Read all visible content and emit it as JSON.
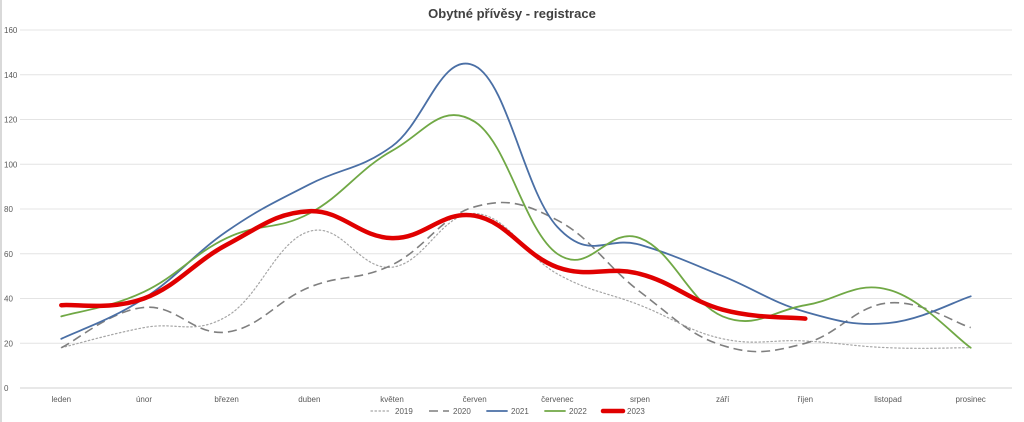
{
  "chart_data": {
    "type": "line",
    "title": "Obytné přívěsy - registrace",
    "xlabel": "",
    "ylabel": "",
    "categories": [
      "leden",
      "únor",
      "březen",
      "duben",
      "květen",
      "červen",
      "červenec",
      "srpen",
      "září",
      "říjen",
      "listopad",
      "prosinec"
    ],
    "ylim": [
      0,
      160
    ],
    "yticks": [
      "0",
      "20",
      "40",
      "60",
      "80",
      "100",
      "120",
      "140",
      "160"
    ],
    "grid": true,
    "legend": "bottom",
    "series": [
      {
        "name": "2019",
        "color": "#a6a6a6",
        "style": "dotted",
        "values": [
          18,
          27,
          32,
          70,
          54,
          78,
          51,
          37,
          22,
          21,
          18,
          18
        ]
      },
      {
        "name": "2020",
        "color": "#7f7f7f",
        "style": "dashed",
        "values": [
          18,
          36,
          25,
          45,
          55,
          81,
          75,
          43,
          19,
          20,
          38,
          27
        ]
      },
      {
        "name": "2021",
        "color": "#4a6fa5",
        "style": "solid",
        "values": [
          22,
          40,
          70,
          91,
          108,
          144,
          72,
          64,
          50,
          34,
          29,
          41
        ]
      },
      {
        "name": "2022",
        "color": "#70a845",
        "style": "solid",
        "values": [
          32,
          43,
          67,
          78,
          106,
          119,
          60,
          67,
          32,
          37,
          44,
          18
        ]
      },
      {
        "name": "2023",
        "color": "#e00000",
        "style": "bold",
        "values": [
          37,
          40,
          64,
          79,
          67,
          77,
          54,
          51,
          35,
          31,
          null,
          null
        ]
      }
    ]
  }
}
